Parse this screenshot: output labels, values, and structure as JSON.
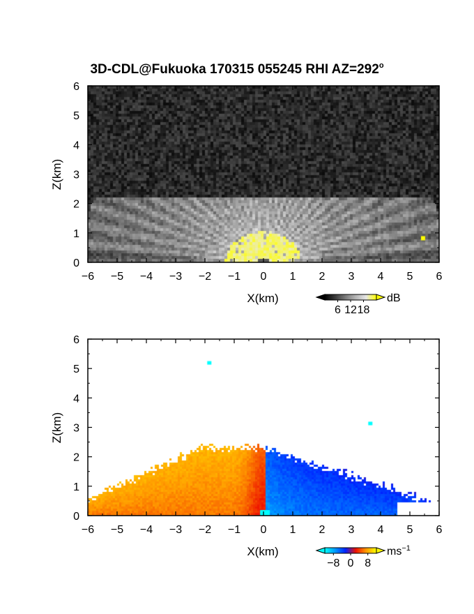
{
  "title": "3D-CDL@Fukuoka 170315 055245 RHI AZ=292",
  "title_degree": "o",
  "chart_data": [
    {
      "type": "heatmap",
      "variable": "reflectivity",
      "xlabel": "X(km)",
      "ylabel": "Z(km)",
      "xlim": [
        -6,
        6
      ],
      "ylim": [
        0,
        6
      ],
      "xticks": [
        "-6",
        "-5",
        "-4",
        "-3",
        "-2",
        "-1",
        "0",
        "1",
        "2",
        "3",
        "4",
        "5",
        "6"
      ],
      "yticks": [
        "0",
        "1",
        "2",
        "3",
        "4",
        "5",
        "6"
      ],
      "colorbar": {
        "unit": "dB",
        "unit_sup": "",
        "ticks": [
          "6",
          "12",
          "18"
        ],
        "tick_values": [
          6,
          12,
          18
        ],
        "range": [
          0,
          24
        ],
        "colors": [
          "#000000",
          "#3a3a3a",
          "#7a7a7a",
          "#b5b5b5",
          "#e6e6e6",
          "#ffff00"
        ]
      },
      "features": {
        "background": "noise",
        "signal_top_km": 2.2,
        "fan_origin_x_km": 0,
        "strong_echo_center_x_km": 0,
        "strong_echo_top_km": 1.05,
        "strong_echo_halfwidth_km": 1.3,
        "isolated_point": {
          "x": 5.45,
          "z": 0.82
        }
      }
    },
    {
      "type": "heatmap",
      "variable": "doppler_velocity",
      "xlabel": "X(km)",
      "ylabel": "Z(km)",
      "xlim": [
        -6,
        6
      ],
      "ylim": [
        0,
        6
      ],
      "xticks": [
        "-6",
        "-5",
        "-4",
        "-3",
        "-2",
        "-1",
        "0",
        "1",
        "2",
        "3",
        "4",
        "5",
        "6"
      ],
      "yticks": [
        "0",
        "1",
        "2",
        "3",
        "4",
        "5",
        "6"
      ],
      "colorbar": {
        "unit": "ms",
        "unit_sup": "−1",
        "ticks": [
          "−8",
          "0",
          "8"
        ],
        "tick_values": [
          -8,
          0,
          8
        ],
        "range": [
          -12,
          12
        ],
        "colors": [
          "#00ffff",
          "#0099ff",
          "#0022ff",
          "#ee1100",
          "#ff9900",
          "#ffff00"
        ]
      },
      "features": {
        "negative_side_value_ms": 6,
        "positive_side_value_ms": -5,
        "signal_top_km": 2.3,
        "isolated_points": [
          {
            "x": -1.85,
            "z": 5.18
          },
          {
            "x": 3.65,
            "z": 3.12
          }
        ]
      }
    }
  ]
}
